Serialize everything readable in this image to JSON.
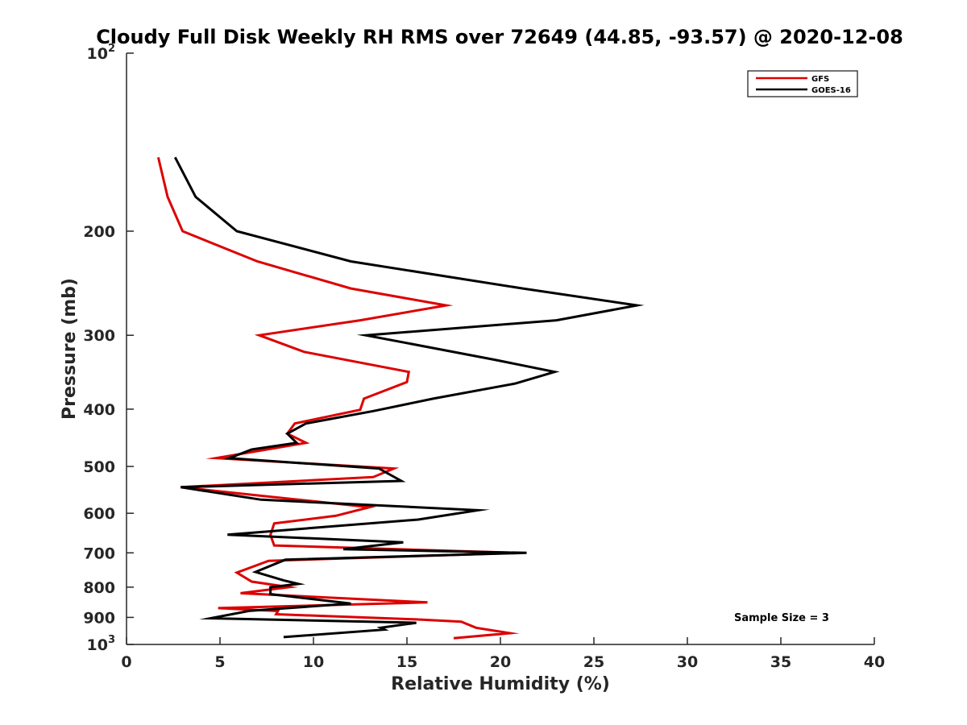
{
  "chart_data": {
    "type": "line",
    "title": "Cloudy Full Disk Weekly RH RMS over 72649 (44.85, -93.57) @ 2020-12-08",
    "xlabel": "Relative Humidity (%)",
    "ylabel": "Pressure (mb)",
    "xlim": [
      0,
      40
    ],
    "ylim": [
      100,
      1000
    ],
    "yscale": "log",
    "y_reversed": true,
    "x_ticks": [
      0,
      5,
      10,
      15,
      20,
      25,
      30,
      35,
      40
    ],
    "y_ticks": [
      {
        "value": 100,
        "label": "10",
        "sup": "2"
      },
      {
        "value": 200,
        "label": "200",
        "sup": ""
      },
      {
        "value": 300,
        "label": "300",
        "sup": ""
      },
      {
        "value": 400,
        "label": "400",
        "sup": ""
      },
      {
        "value": 500,
        "label": "500",
        "sup": ""
      },
      {
        "value": 600,
        "label": "600",
        "sup": ""
      },
      {
        "value": 700,
        "label": "700",
        "sup": ""
      },
      {
        "value": 800,
        "label": "800",
        "sup": ""
      },
      {
        "value": 900,
        "label": "900",
        "sup": ""
      },
      {
        "value": 1000,
        "label": "10",
        "sup": "3"
      }
    ],
    "grid": false,
    "legend_position": "top-right",
    "annotation": "Sample Size = 3",
    "series": [
      {
        "name": "GFS",
        "color": "#dd0000",
        "points": [
          [
            1.7,
            150
          ],
          [
            2.2,
            175
          ],
          [
            3.0,
            200
          ],
          [
            7.0,
            225
          ],
          [
            12.0,
            250
          ],
          [
            17.1,
            267
          ],
          [
            12.5,
            283
          ],
          [
            7.1,
            300
          ],
          [
            9.5,
            320
          ],
          [
            15.1,
            346
          ],
          [
            15.0,
            360
          ],
          [
            12.7,
            384
          ],
          [
            12.5,
            401
          ],
          [
            9.0,
            423
          ],
          [
            8.6,
            440
          ],
          [
            9.6,
            456
          ],
          [
            4.8,
            484
          ],
          [
            14.3,
            504
          ],
          [
            13.2,
            521
          ],
          [
            2.9,
            542
          ],
          [
            8.5,
            566
          ],
          [
            13.0,
            586
          ],
          [
            11.2,
            606
          ],
          [
            7.9,
            624
          ],
          [
            7.7,
            653
          ],
          [
            7.9,
            680
          ],
          [
            20.9,
            700
          ],
          [
            7.6,
            722
          ],
          [
            5.9,
            756
          ],
          [
            6.7,
            783
          ],
          [
            8.7,
            800
          ],
          [
            6.1,
            819
          ],
          [
            16.1,
            849
          ],
          [
            4.9,
            868
          ],
          [
            8.1,
            878
          ],
          [
            8.0,
            889
          ],
          [
            15.5,
            907
          ],
          [
            17.9,
            915
          ],
          [
            18.7,
            937
          ],
          [
            20.5,
            957
          ],
          [
            17.5,
            976
          ]
        ]
      },
      {
        "name": "GOES-16",
        "color": "#000000",
        "points": [
          [
            2.6,
            150
          ],
          [
            3.7,
            175
          ],
          [
            5.9,
            200
          ],
          [
            12.0,
            225
          ],
          [
            21.2,
            250
          ],
          [
            27.3,
            267
          ],
          [
            23.0,
            283
          ],
          [
            12.8,
            300
          ],
          [
            19.7,
            330
          ],
          [
            22.9,
            346
          ],
          [
            20.8,
            362
          ],
          [
            16.4,
            384
          ],
          [
            13.2,
            403
          ],
          [
            9.6,
            423
          ],
          [
            8.6,
            440
          ],
          [
            9.1,
            456
          ],
          [
            6.7,
            468
          ],
          [
            5.5,
            484
          ],
          [
            13.5,
            504
          ],
          [
            14.7,
            529
          ],
          [
            2.9,
            542
          ],
          [
            7.2,
            569
          ],
          [
            18.8,
            593
          ],
          [
            15.6,
            615
          ],
          [
            5.4,
            652
          ],
          [
            14.8,
            672
          ],
          [
            11.6,
            690
          ],
          [
            21.4,
            700
          ],
          [
            8.5,
            719
          ],
          [
            6.9,
            754
          ],
          [
            8.4,
            779
          ],
          [
            9.2,
            790
          ],
          [
            7.7,
            800
          ],
          [
            7.7,
            822
          ],
          [
            12.0,
            853
          ],
          [
            6.6,
            877
          ],
          [
            4.5,
            903
          ],
          [
            15.5,
            919
          ],
          [
            13.6,
            937
          ],
          [
            13.8,
            944
          ],
          [
            8.4,
            972
          ]
        ]
      }
    ]
  }
}
